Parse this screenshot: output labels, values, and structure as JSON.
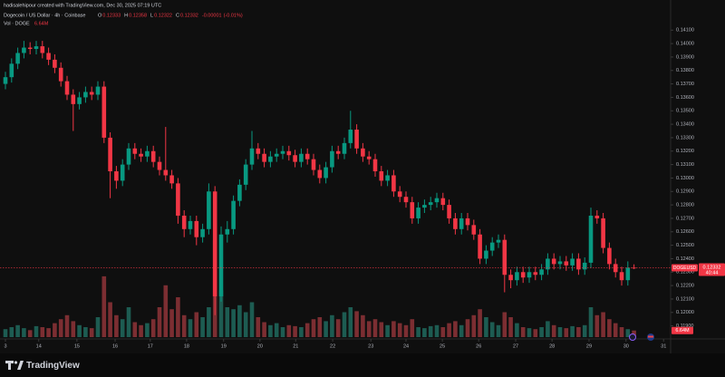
{
  "attribution": "hadisalehipour created with TradingView.com, Dec 30, 2025 07:19 UTC",
  "brand": "TradingView",
  "chart_data": {
    "type": "candlestick",
    "symbol": "Dogecoin / US Dollar · 4h · Coinbase",
    "legend": {
      "open": {
        "name": "O",
        "value": 0.12333
      },
      "high": {
        "name": "H",
        "value": 0.12358
      },
      "low": {
        "name": "L",
        "value": 0.12322
      },
      "close": {
        "name": "C",
        "value": 0.12332
      },
      "change": -1e-05,
      "change_percent": {
        "value": -0.01,
        "label": "(-0.01%)"
      }
    },
    "volume_name": "Vol · DOGE",
    "volume_last": {
      "value": 6.64,
      "label": "6.64M"
    },
    "last_price_symbol": "DOGEUSD",
    "last_price": 0.12332,
    "countdown": "40:44",
    "up_color": "#089981",
    "down_color": "#f23645",
    "volume_up_color": "#1d5c52",
    "volume_down_color": "#7c2e32",
    "grid": false,
    "open": [
      0.137,
      0.1375,
      0.1385,
      0.1393,
      0.1397,
      0.1396,
      0.1398,
      0.1393,
      0.1388,
      0.1382,
      0.1372,
      0.1362,
      0.1355,
      0.136,
      0.1364,
      0.1362,
      0.1368,
      0.133,
      0.1305,
      0.1298,
      0.131,
      0.1322,
      0.1318,
      0.1316,
      0.132,
      0.1312,
      0.1306,
      0.1302,
      0.1296,
      0.1272,
      0.1262,
      0.1268,
      0.1256,
      0.1262,
      0.129,
      0.1212,
      0.1258,
      0.1262,
      0.1283,
      0.1295,
      0.131,
      0.1322,
      0.1318,
      0.1312,
      0.1316,
      0.1318,
      0.132,
      0.1317,
      0.1312,
      0.1318,
      0.1314,
      0.1306,
      0.13,
      0.1308,
      0.132,
      0.1318,
      0.1326,
      0.1336,
      0.1322,
      0.1316,
      0.1314,
      0.1305,
      0.1298,
      0.1302,
      0.129,
      0.1286,
      0.1282,
      0.127,
      0.1278,
      0.128,
      0.1282,
      0.1285,
      0.128,
      0.127,
      0.1262,
      0.127,
      0.1265,
      0.1258,
      0.124,
      0.1246,
      0.1252,
      0.1254,
      0.1228,
      0.1224,
      0.123,
      0.1226,
      0.123,
      0.1228,
      0.1232,
      0.124,
      0.1236,
      0.1238,
      0.1235,
      0.124,
      0.1232,
      0.1237,
      0.1272,
      0.127,
      0.1248,
      0.1236,
      0.123,
      0.1224,
      0.12333
    ],
    "high": [
      0.1379,
      0.1389,
      0.1397,
      0.1402,
      0.1401,
      0.1402,
      0.1402,
      0.1397,
      0.1392,
      0.1386,
      0.1376,
      0.1366,
      0.1364,
      0.1368,
      0.1368,
      0.1372,
      0.1372,
      0.1334,
      0.1309,
      0.1314,
      0.1326,
      0.1326,
      0.1322,
      0.1324,
      0.1324,
      0.1316,
      0.1338,
      0.1306,
      0.13,
      0.1276,
      0.1272,
      0.1272,
      0.1266,
      0.1296,
      0.1294,
      0.1264,
      0.1268,
      0.1287,
      0.1299,
      0.1314,
      0.1335,
      0.1326,
      0.1322,
      0.132,
      0.1322,
      0.1324,
      0.1324,
      0.1321,
      0.1322,
      0.1322,
      0.1318,
      0.131,
      0.1312,
      0.1324,
      0.1324,
      0.133,
      0.135,
      0.134,
      0.1326,
      0.132,
      0.1318,
      0.1309,
      0.1306,
      0.1306,
      0.1294,
      0.129,
      0.1286,
      0.1282,
      0.1284,
      0.1286,
      0.1289,
      0.1289,
      0.1284,
      0.1274,
      0.1274,
      0.1274,
      0.1269,
      0.1262,
      0.125,
      0.1256,
      0.1258,
      0.1258,
      0.1232,
      0.1234,
      0.1234,
      0.1234,
      0.1234,
      0.1236,
      0.1244,
      0.1244,
      0.1242,
      0.1242,
      0.1244,
      0.1244,
      0.1241,
      0.1278,
      0.1276,
      0.1274,
      0.1252,
      0.124,
      0.1234,
      0.1238,
      0.12358
    ],
    "low": [
      0.1366,
      0.1371,
      0.1381,
      0.1389,
      0.1392,
      0.1392,
      0.1389,
      0.1384,
      0.1378,
      0.1368,
      0.1358,
      0.1335,
      0.1351,
      0.1356,
      0.1358,
      0.1358,
      0.1326,
      0.1285,
      0.1292,
      0.1294,
      0.1306,
      0.1314,
      0.1312,
      0.1312,
      0.1308,
      0.1302,
      0.1298,
      0.1292,
      0.1266,
      0.1256,
      0.1258,
      0.125,
      0.1252,
      0.1258,
      0.1198,
      0.1208,
      0.1252,
      0.1258,
      0.1279,
      0.1291,
      0.1306,
      0.1314,
      0.1308,
      0.1308,
      0.1312,
      0.1314,
      0.1313,
      0.1308,
      0.1308,
      0.131,
      0.1302,
      0.1296,
      0.1296,
      0.1304,
      0.1314,
      0.1314,
      0.1322,
      0.1318,
      0.1312,
      0.131,
      0.1301,
      0.1294,
      0.1294,
      0.1286,
      0.1282,
      0.1278,
      0.1266,
      0.1266,
      0.1274,
      0.1276,
      0.1278,
      0.1276,
      0.1266,
      0.1258,
      0.1258,
      0.1261,
      0.1254,
      0.1236,
      0.1236,
      0.1242,
      0.1248,
      0.1215,
      0.1218,
      0.122,
      0.1222,
      0.1222,
      0.1224,
      0.1224,
      0.1228,
      0.1232,
      0.1232,
      0.1231,
      0.1231,
      0.1228,
      0.1228,
      0.1233,
      0.1266,
      0.1244,
      0.1232,
      0.1226,
      0.122,
      0.122,
      0.12322
    ],
    "close": [
      0.1375,
      0.1385,
      0.1393,
      0.1397,
      0.1396,
      0.1398,
      0.1393,
      0.1388,
      0.1382,
      0.1372,
      0.1362,
      0.1355,
      0.136,
      0.1364,
      0.1362,
      0.1368,
      0.133,
      0.1305,
      0.1298,
      0.131,
      0.1322,
      0.1318,
      0.1316,
      0.132,
      0.1312,
      0.1306,
      0.1302,
      0.1296,
      0.1272,
      0.1262,
      0.1268,
      0.1256,
      0.1262,
      0.129,
      0.1212,
      0.1258,
      0.1262,
      0.1283,
      0.1295,
      0.131,
      0.1322,
      0.1318,
      0.1312,
      0.1316,
      0.1318,
      0.132,
      0.1317,
      0.1312,
      0.1318,
      0.1314,
      0.1306,
      0.13,
      0.1308,
      0.132,
      0.1318,
      0.1326,
      0.1336,
      0.1322,
      0.1316,
      0.1314,
      0.1305,
      0.1298,
      0.1302,
      0.129,
      0.1286,
      0.1282,
      0.127,
      0.1278,
      0.128,
      0.1282,
      0.1285,
      0.128,
      0.127,
      0.1262,
      0.127,
      0.1265,
      0.1258,
      0.124,
      0.1246,
      0.1252,
      0.1254,
      0.1228,
      0.1224,
      0.123,
      0.1226,
      0.123,
      0.1228,
      0.1232,
      0.124,
      0.1236,
      0.1238,
      0.1235,
      0.124,
      0.1232,
      0.1237,
      0.1272,
      0.127,
      0.1248,
      0.1236,
      0.123,
      0.1224,
      0.12333,
      0.12332
    ],
    "volume": [
      8,
      10,
      12,
      9,
      7,
      11,
      10,
      9,
      14,
      18,
      22,
      16,
      12,
      10,
      9,
      20,
      61,
      35,
      22,
      18,
      30,
      15,
      12,
      14,
      18,
      30,
      52,
      28,
      40,
      22,
      18,
      25,
      20,
      30,
      97,
      47,
      30,
      28,
      32,
      25,
      35,
      20,
      15,
      12,
      14,
      10,
      12,
      11,
      10,
      14,
      18,
      20,
      16,
      22,
      18,
      25,
      30,
      26,
      22,
      16,
      18,
      15,
      12,
      16,
      14,
      12,
      18,
      10,
      9,
      11,
      12,
      10,
      14,
      16,
      12,
      18,
      22,
      28,
      20,
      15,
      12,
      25,
      20,
      14,
      10,
      9,
      8,
      10,
      16,
      12,
      10,
      9,
      11,
      10,
      12,
      30,
      22,
      25,
      18,
      14,
      10,
      8,
      6.64
    ],
    "volume_ylim": [
      0,
      100
    ],
    "ylim": [
      0.1183,
      0.1425
    ],
    "yticks": [
      {
        "value": 0.119,
        "label": "0.11900"
      },
      {
        "value": 0.12,
        "label": "0.12000"
      },
      {
        "value": 0.121,
        "label": "0.12100"
      },
      {
        "value": 0.122,
        "label": "0.12200"
      },
      {
        "value": 0.123,
        "label": "0.12300"
      },
      {
        "value": 0.124,
        "label": "0.12400"
      },
      {
        "value": 0.125,
        "label": "0.12500"
      },
      {
        "value": 0.126,
        "label": "0.12600"
      },
      {
        "value": 0.127,
        "label": "0.12700"
      },
      {
        "value": 0.128,
        "label": "0.12800"
      },
      {
        "value": 0.129,
        "label": "0.12900"
      },
      {
        "value": 0.13,
        "label": "0.13000"
      },
      {
        "value": 0.131,
        "label": "0.13100"
      },
      {
        "value": 0.132,
        "label": "0.13200"
      },
      {
        "value": 0.133,
        "label": "0.13300"
      },
      {
        "value": 0.134,
        "label": "0.13400"
      },
      {
        "value": 0.135,
        "label": "0.13500"
      },
      {
        "value": 0.136,
        "label": "0.13600"
      },
      {
        "value": 0.137,
        "label": "0.13700"
      },
      {
        "value": 0.138,
        "label": "0.13800"
      },
      {
        "value": 0.139,
        "label": "0.13900"
      },
      {
        "value": 0.14,
        "label": "0.14000"
      },
      {
        "value": 0.141,
        "label": "0.14100"
      }
    ],
    "xticks": [
      {
        "value": 0,
        "label": "3"
      },
      {
        "value": 5.4,
        "label": "14"
      },
      {
        "value": 11.6,
        "label": "15"
      },
      {
        "value": 17.8,
        "label": "16"
      },
      {
        "value": 23.5,
        "label": "17"
      },
      {
        "value": 29.4,
        "label": "18"
      },
      {
        "value": 35.4,
        "label": "19"
      },
      {
        "value": 41.3,
        "label": "20"
      },
      {
        "value": 47.1,
        "label": "21"
      },
      {
        "value": 53.1,
        "label": "22"
      },
      {
        "value": 59.3,
        "label": "23"
      },
      {
        "value": 65,
        "label": "24"
      },
      {
        "value": 70.9,
        "label": "25"
      },
      {
        "value": 76.8,
        "label": "26"
      },
      {
        "value": 82.8,
        "label": "27"
      },
      {
        "value": 88.7,
        "label": "28"
      },
      {
        "value": 94.7,
        "label": "29"
      },
      {
        "value": 100.7,
        "label": "30"
      },
      {
        "value": 106.8,
        "label": "31"
      }
    ]
  }
}
